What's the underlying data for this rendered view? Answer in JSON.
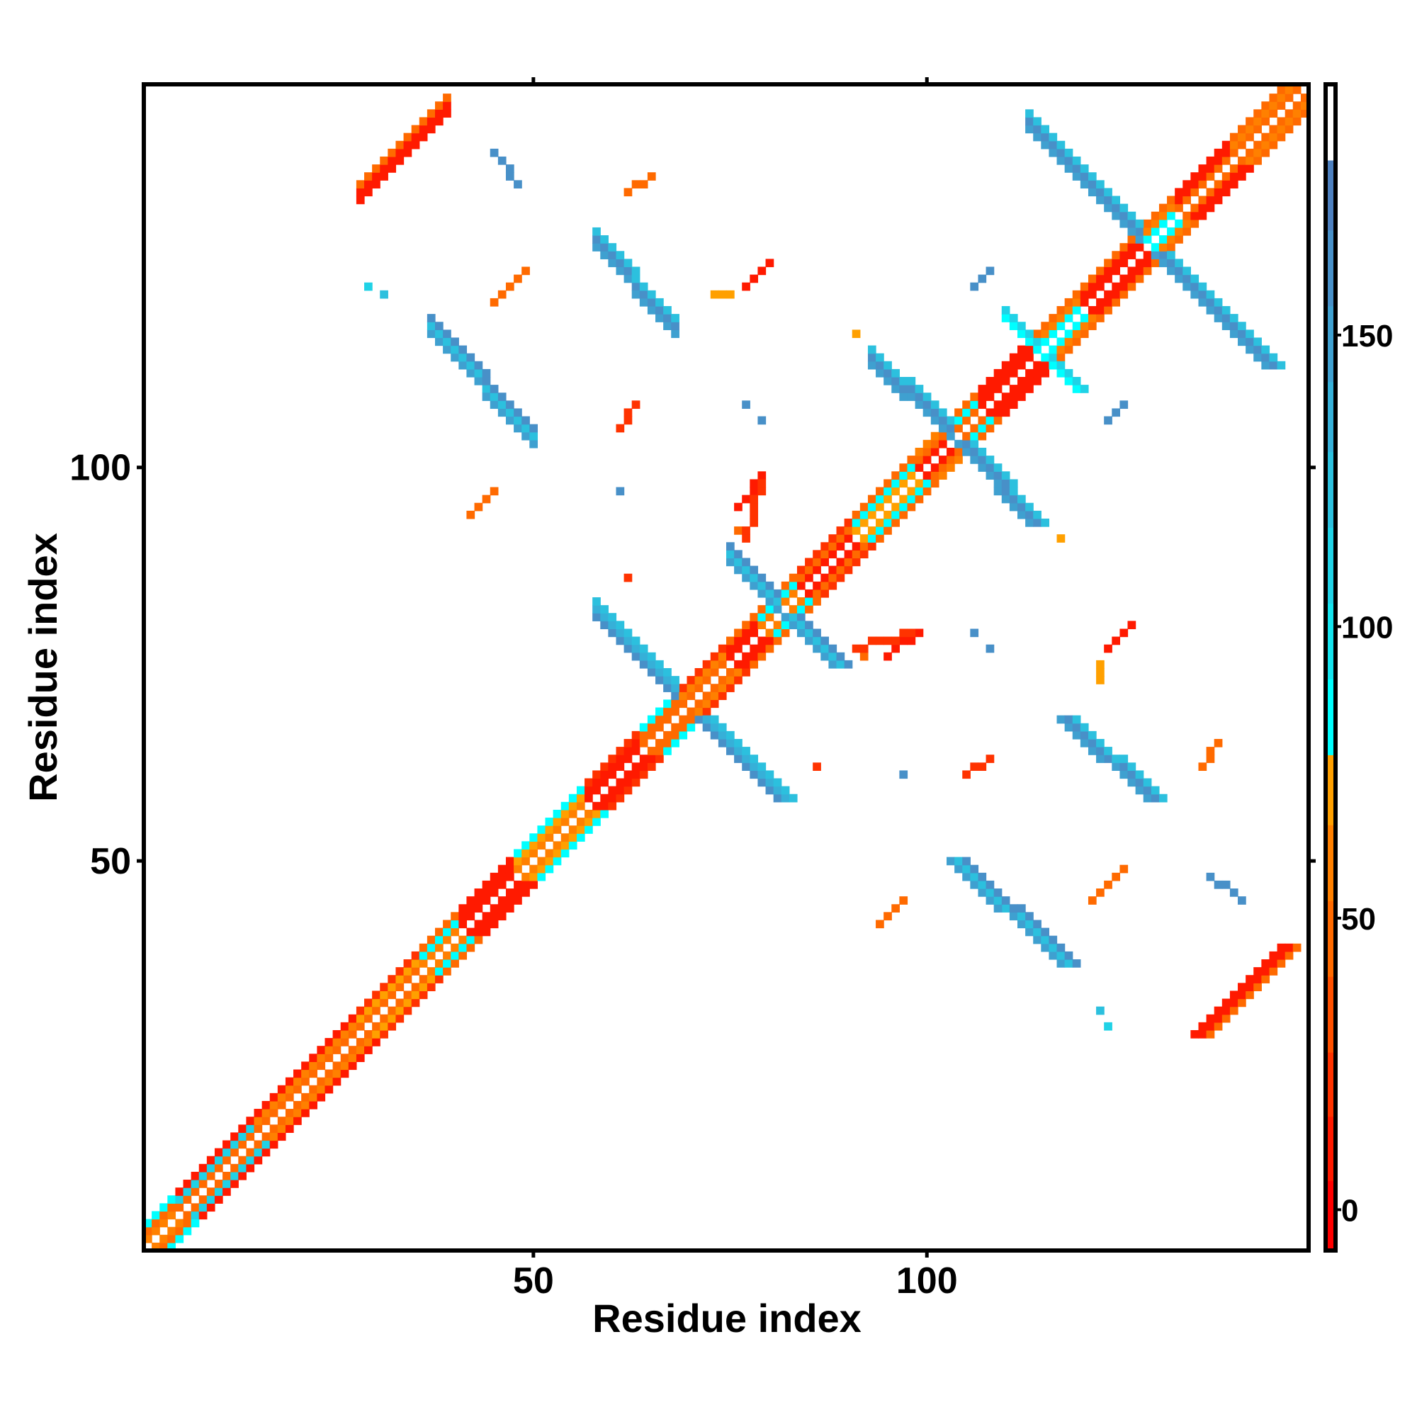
{
  "chart_data": {
    "type": "heatmap",
    "title": "",
    "xlabel": "Residue index",
    "ylabel": "Residue index",
    "n_residues": 148,
    "xlim": [
      1,
      148
    ],
    "ylim": [
      1,
      148
    ],
    "x_ticks": [
      {
        "value": 50,
        "label": "50"
      },
      {
        "value": 100,
        "label": "100"
      }
    ],
    "y_ticks": [
      {
        "value": 50,
        "label": "50"
      },
      {
        "value": 100,
        "label": "100"
      }
    ],
    "symmetric": true,
    "colorbar": {
      "range": [
        -7,
        193
      ],
      "ticks": [
        {
          "value": 0,
          "label": "0"
        },
        {
          "value": 50,
          "label": "50"
        },
        {
          "value": 100,
          "label": "100"
        },
        {
          "value": 150,
          "label": "150"
        }
      ],
      "bins": [
        {
          "from": -7,
          "to": 5,
          "color": "#ff0000"
        },
        {
          "from": 5,
          "to": 16,
          "color": "#ff1a00"
        },
        {
          "from": 16,
          "to": 27,
          "color": "#ff3300"
        },
        {
          "from": 27,
          "to": 40,
          "color": "#ff5000"
        },
        {
          "from": 40,
          "to": 53,
          "color": "#ff6a00"
        },
        {
          "from": 53,
          "to": 66,
          "color": "#ff8000"
        },
        {
          "from": 66,
          "to": 78,
          "color": "#ffa000"
        },
        {
          "from": 78,
          "to": 91,
          "color": "#00ffff"
        },
        {
          "from": 91,
          "to": 104,
          "color": "#14e4ee"
        },
        {
          "from": 104,
          "to": 117,
          "color": "#20d2e6"
        },
        {
          "from": 117,
          "to": 130,
          "color": "#2cc0de"
        },
        {
          "from": 130,
          "to": 142,
          "color": "#36b0d8"
        },
        {
          "from": 142,
          "to": 155,
          "color": "#3fa0d0"
        },
        {
          "from": 155,
          "to": 168,
          "color": "#4890c8"
        },
        {
          "from": 168,
          "to": 180,
          "color": "#4d80bf"
        },
        {
          "from": 180,
          "to": 193,
          "color": "#ffffff"
        }
      ]
    },
    "diagonal_segments": [
      {
        "start": 1,
        "end": 4,
        "values": [
          60,
          45,
          85
        ]
      },
      {
        "start": 5,
        "end": 14,
        "values": [
          45,
          110,
          15
        ]
      },
      {
        "start": 15,
        "end": 27,
        "values": [
          45,
          60,
          15
        ]
      },
      {
        "start": 28,
        "end": 35,
        "values": [
          45,
          72,
          20
        ]
      },
      {
        "start": 36,
        "end": 40,
        "values": [
          60,
          85,
          45
        ]
      },
      {
        "start": 41,
        "end": 47,
        "values": [
          15,
          5,
          10
        ]
      },
      {
        "start": 48,
        "end": 56,
        "values": [
          60,
          72,
          85
        ]
      },
      {
        "start": 57,
        "end": 63,
        "values": [
          15,
          5,
          20
        ]
      },
      {
        "start": 64,
        "end": 68,
        "values": [
          45,
          40,
          85
        ]
      },
      {
        "start": 69,
        "end": 74,
        "values": [
          45,
          60,
          20
        ]
      },
      {
        "start": 75,
        "end": 78,
        "values": [
          5,
          10,
          45
        ]
      },
      {
        "start": 79,
        "end": 83,
        "values": [
          60,
          85,
          40
        ]
      },
      {
        "start": 84,
        "end": 90,
        "values": [
          15,
          45,
          20
        ]
      },
      {
        "start": 91,
        "end": 98,
        "values": [
          72,
          85,
          45
        ]
      },
      {
        "start": 99,
        "end": 102,
        "values": [
          5,
          45,
          60
        ]
      },
      {
        "start": 103,
        "end": 106,
        "values": [
          45,
          85,
          40
        ]
      },
      {
        "start": 107,
        "end": 113,
        "values": [
          5,
          10,
          15
        ]
      },
      {
        "start": 114,
        "end": 119,
        "values": [
          85,
          60,
          40
        ]
      },
      {
        "start": 120,
        "end": 127,
        "values": [
          5,
          15,
          40
        ]
      },
      {
        "start": 128,
        "end": 131,
        "values": [
          85,
          60,
          45
        ]
      },
      {
        "start": 132,
        "end": 138,
        "values": [
          40,
          15,
          5
        ]
      },
      {
        "start": 139,
        "end": 147,
        "values": [
          45,
          60,
          40
        ]
      }
    ],
    "contact_features": [
      {
        "i0": 28,
        "j0": 134,
        "i1": 39,
        "j1": 145,
        "width": 3,
        "values": [
          15,
          5,
          45
        ]
      },
      {
        "i0": 45,
        "j0": 140,
        "i1": 48,
        "j1": 136,
        "width": 1,
        "values": [
          160
        ]
      },
      {
        "i0": 62,
        "j0": 135,
        "i1": 65,
        "j1": 137,
        "width": 1,
        "values": [
          45
        ]
      },
      {
        "i0": 58,
        "j0": 128,
        "i1": 68,
        "j1": 117,
        "width": 3,
        "values": [
          150,
          165,
          120
        ]
      },
      {
        "i0": 45,
        "j0": 121,
        "i1": 49,
        "j1": 125,
        "width": 1,
        "values": [
          45
        ]
      },
      {
        "i0": 77,
        "j0": 123,
        "i1": 80,
        "j1": 126,
        "width": 1,
        "values": [
          10
        ]
      },
      {
        "i0": 73,
        "j0": 122,
        "i1": 75,
        "j1": 122,
        "width": 1,
        "values": [
          72
        ]
      },
      {
        "i0": 29,
        "j0": 123,
        "i1": 29,
        "j1": 123,
        "width": 1,
        "values": [
          110
        ]
      },
      {
        "i0": 31,
        "j0": 122,
        "i1": 31,
        "j1": 122,
        "width": 1,
        "values": [
          120
        ]
      },
      {
        "i0": 37,
        "j0": 117,
        "i1": 50,
        "j1": 103,
        "width": 3,
        "values": [
          150,
          120,
          165
        ]
      },
      {
        "i0": 61,
        "j0": 105,
        "i1": 63,
        "j1": 108,
        "width": 1,
        "values": [
          20
        ]
      },
      {
        "i0": 77,
        "j0": 108,
        "i1": 77,
        "j1": 108,
        "width": 1,
        "values": [
          160
        ]
      },
      {
        "i0": 79,
        "j0": 106,
        "i1": 79,
        "j1": 106,
        "width": 1,
        "values": [
          160
        ]
      },
      {
        "i0": 61,
        "j0": 97,
        "i1": 61,
        "j1": 97,
        "width": 1,
        "values": [
          160
        ]
      },
      {
        "i0": 42,
        "j0": 94,
        "i1": 45,
        "j1": 97,
        "width": 1,
        "values": [
          45
        ]
      },
      {
        "i0": 76,
        "j0": 95,
        "i1": 79,
        "j1": 99,
        "width": 1,
        "values": [
          10
        ]
      },
      {
        "i0": 76,
        "j0": 92,
        "i1": 76,
        "j1": 92,
        "width": 1,
        "values": [
          45
        ]
      },
      {
        "i0": 62,
        "j0": 86,
        "i1": 62,
        "j1": 86,
        "width": 1,
        "values": [
          20
        ]
      },
      {
        "i0": 58,
        "j0": 81,
        "i1": 68,
        "j1": 71,
        "width": 3,
        "values": [
          160,
          140,
          120
        ]
      },
      {
        "i0": 75,
        "j0": 88,
        "i1": 81,
        "j1": 82,
        "width": 3,
        "values": [
          150,
          120,
          165
        ]
      },
      {
        "i0": 93,
        "j0": 113,
        "i1": 103,
        "j1": 104,
        "width": 3,
        "values": [
          150,
          165,
          120
        ]
      },
      {
        "i0": 110,
        "j0": 119,
        "i1": 114,
        "j1": 115,
        "width": 2,
        "values": [
          85,
          110
        ]
      },
      {
        "i0": 113,
        "j0": 143,
        "i1": 127,
        "j1": 129,
        "width": 3,
        "values": [
          150,
          165,
          120
        ]
      },
      {
        "i0": 77,
        "j0": 91,
        "i1": 79,
        "j1": 98,
        "width": 1,
        "values": [
          20
        ]
      },
      {
        "i0": 106,
        "j0": 123,
        "i1": 108,
        "j1": 125,
        "width": 1,
        "values": [
          160
        ]
      },
      {
        "i0": 91,
        "j0": 117,
        "i1": 91,
        "j1": 117,
        "width": 1,
        "values": [
          72
        ]
      }
    ]
  }
}
